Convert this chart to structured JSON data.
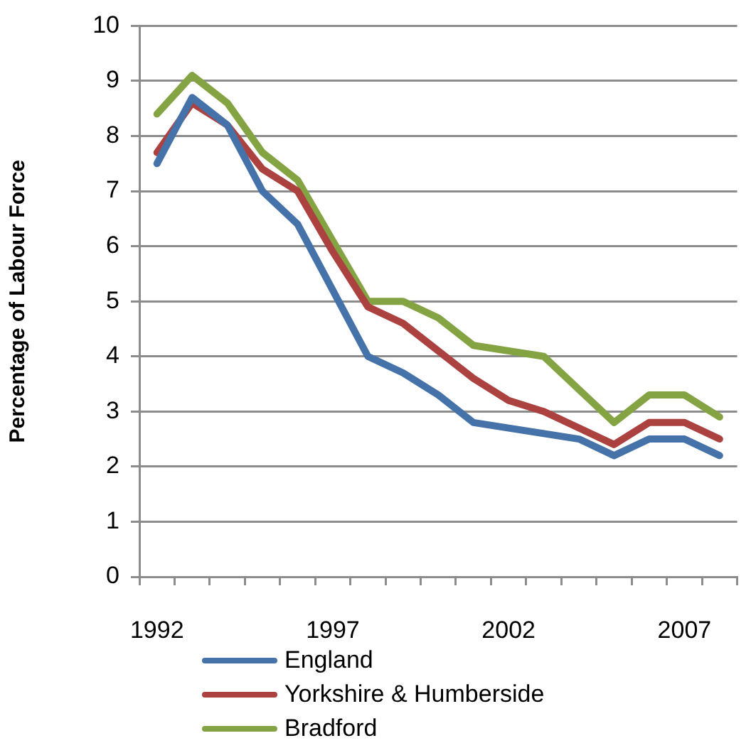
{
  "chart_data": {
    "type": "line",
    "ylabel": "Percentage of Labour Force",
    "categories": [
      "1992",
      null,
      null,
      null,
      null,
      "1997",
      null,
      null,
      null,
      null,
      "2002",
      null,
      null,
      null,
      null,
      "2007",
      null
    ],
    "series": [
      {
        "name": "England",
        "color": "#4672aa",
        "values": [
          7.5,
          8.7,
          8.2,
          7.0,
          6.4,
          5.2,
          4.0,
          3.7,
          3.3,
          2.8,
          2.7,
          2.6,
          2.5,
          2.2,
          2.5,
          2.5,
          2.2
        ]
      },
      {
        "name": "Yorkshire & Humberside",
        "color": "#ac423f",
        "values": [
          7.7,
          8.6,
          8.2,
          7.4,
          7.0,
          5.9,
          4.9,
          4.6,
          4.1,
          3.6,
          3.2,
          3.0,
          2.7,
          2.4,
          2.8,
          2.8,
          2.5
        ]
      },
      {
        "name": "Bradford",
        "color": "#84a444",
        "values": [
          8.4,
          9.1,
          8.6,
          7.7,
          7.2,
          6.1,
          5.0,
          5.0,
          4.7,
          4.2,
          4.1,
          4.0,
          3.4,
          2.8,
          3.3,
          3.3,
          2.9
        ]
      }
    ],
    "ylim": [
      0,
      10
    ],
    "yticks": [
      0,
      1,
      2,
      3,
      4,
      5,
      6,
      7,
      8,
      9,
      10
    ],
    "grid": "y",
    "legend": "bottom"
  }
}
